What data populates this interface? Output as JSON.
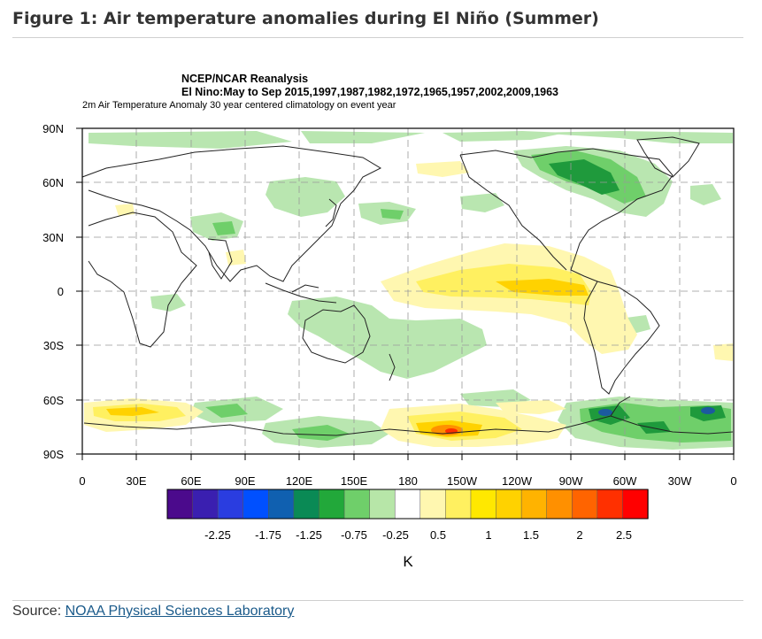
{
  "figure_title": "Figure 1: Air temperature anomalies during El Niño (Summer)",
  "map": {
    "title_line1": "NCEP/NCAR Reanalysis",
    "title_line2": "El Nino:May to Sep 2015,1997,1987,1982,1972,1965,1957,2002,2009,1963",
    "subtitle": "2m Air Temperature Anomaly 30 year centered climatology on event year",
    "lat_labels": [
      "90N",
      "60N",
      "30N",
      "0",
      "30S",
      "60S",
      "90S"
    ],
    "lon_labels": [
      "0",
      "30E",
      "60E",
      "90E",
      "120E",
      "150E",
      "180",
      "150W",
      "120W",
      "90W",
      "60W",
      "30W",
      "0"
    ]
  },
  "colorbar": {
    "ticks": [
      "-2.25",
      "-1.75",
      "-1.25",
      "-0.75",
      "-0.25",
      "0.5",
      "1",
      "1.5",
      "2",
      "2.5"
    ],
    "unit": "K",
    "colors": [
      "#4b0a8c",
      "#3a1fb0",
      "#2a3de0",
      "#0050ff",
      "#1060b0",
      "#0a8a55",
      "#22a83a",
      "#6fcf6a",
      "#b7e6a8",
      "#ffffff",
      "#fff7b0",
      "#fff060",
      "#ffe800",
      "#ffd200",
      "#ffb300",
      "#ff9000",
      "#ff6400",
      "#ff3000",
      "#ff0000"
    ]
  },
  "source": {
    "label": "Source:",
    "link_text": "NOAA Physical Sciences Laboratory"
  }
}
